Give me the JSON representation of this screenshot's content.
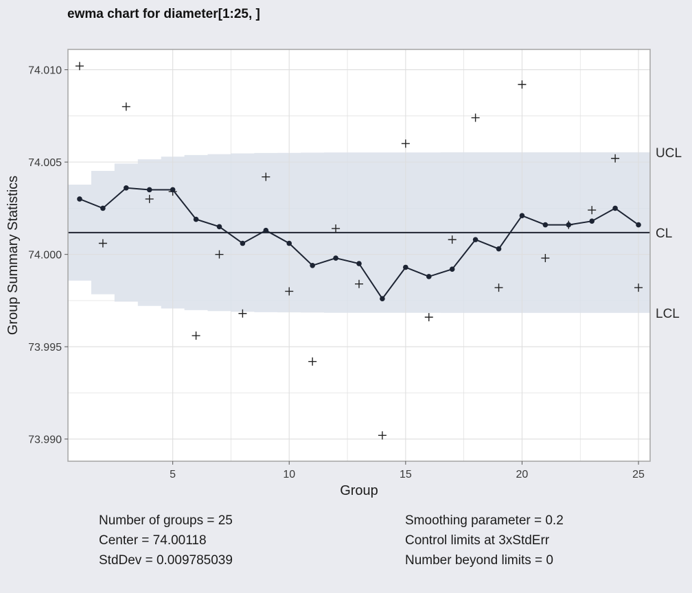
{
  "chart_data": {
    "type": "line",
    "title": "ewma chart for diameter[1:25, ]",
    "xlabel": "Group",
    "ylabel": "Group Summary Statistics",
    "xlim": [
      0.5,
      25.5
    ],
    "ylim": [
      73.9888,
      74.0111
    ],
    "x_ticks": [
      5,
      10,
      15,
      20,
      25
    ],
    "y_ticks": [
      73.99,
      73.995,
      74.0,
      74.005,
      74.01
    ],
    "y_tick_labels": [
      "73.990",
      "73.995",
      "74.000",
      "74.005",
      "74.010"
    ],
    "grid": true,
    "center": 74.00118,
    "limit_labels": {
      "ucl": "UCL",
      "cl": "CL",
      "lcl": "LCL"
    },
    "ucl": [
      74.00378,
      74.00452,
      74.00492,
      74.00515,
      74.00529,
      74.00538,
      74.00543,
      74.00547,
      74.00549,
      74.0055,
      74.00551,
      74.00552,
      74.00552,
      74.00552,
      74.00552,
      74.00552,
      74.00553,
      74.00553,
      74.00553,
      74.00553,
      74.00553,
      74.00553,
      74.00553,
      74.00553,
      74.00553
    ],
    "lcl": [
      73.99858,
      73.99784,
      73.99744,
      73.99721,
      73.99707,
      73.99698,
      73.99693,
      73.99689,
      73.99687,
      73.99686,
      73.99685,
      73.99684,
      73.99684,
      73.99684,
      73.99684,
      73.99684,
      73.99683,
      73.99683,
      73.99683,
      73.99683,
      73.99683,
      73.99683,
      73.99683,
      73.99683,
      73.99683
    ],
    "series": [
      {
        "name": "statistics",
        "marker": "plus",
        "x": [
          1,
          2,
          3,
          4,
          5,
          6,
          7,
          8,
          9,
          10,
          11,
          12,
          13,
          14,
          15,
          16,
          17,
          18,
          19,
          20,
          21,
          22,
          23,
          24,
          25
        ],
        "values": [
          74.0102,
          74.0006,
          74.008,
          74.003,
          74.0034,
          73.9956,
          74.0,
          73.9968,
          74.0042,
          73.998,
          73.9942,
          74.0014,
          73.9984,
          73.9902,
          74.006,
          73.9966,
          74.0008,
          74.0074,
          73.9982,
          74.0092,
          73.9998,
          74.0016,
          74.0024,
          74.0052,
          73.9982
        ]
      },
      {
        "name": "ewma",
        "marker": "dot",
        "x": [
          1,
          2,
          3,
          4,
          5,
          6,
          7,
          8,
          9,
          10,
          11,
          12,
          13,
          14,
          15,
          16,
          17,
          18,
          19,
          20,
          21,
          22,
          23,
          24,
          25
        ],
        "values": [
          74.003,
          74.0025,
          74.0036,
          74.0035,
          74.0035,
          74.0019,
          74.0015,
          74.0006,
          74.0013,
          74.0006,
          73.9994,
          73.9998,
          73.9995,
          73.9976,
          73.9993,
          73.9988,
          73.9992,
          74.0008,
          74.0003,
          74.0021,
          74.0016,
          74.0016,
          74.0018,
          74.0025,
          74.0016
        ]
      }
    ]
  },
  "stats": {
    "left": [
      "Number of groups = 25",
      "Center = 74.00118",
      "StdDev = 0.009785039"
    ],
    "right": [
      "Smoothing parameter = 0.2",
      "Control limits at 3xStdErr",
      "Number beyond limits = 0"
    ]
  },
  "colors": {
    "band": "#dbe0ea",
    "line": "#1d2433",
    "center_line": "#1f2430",
    "grid": "#dedede",
    "panel_border": "#a9a9a9",
    "background": "#eaebf0"
  }
}
